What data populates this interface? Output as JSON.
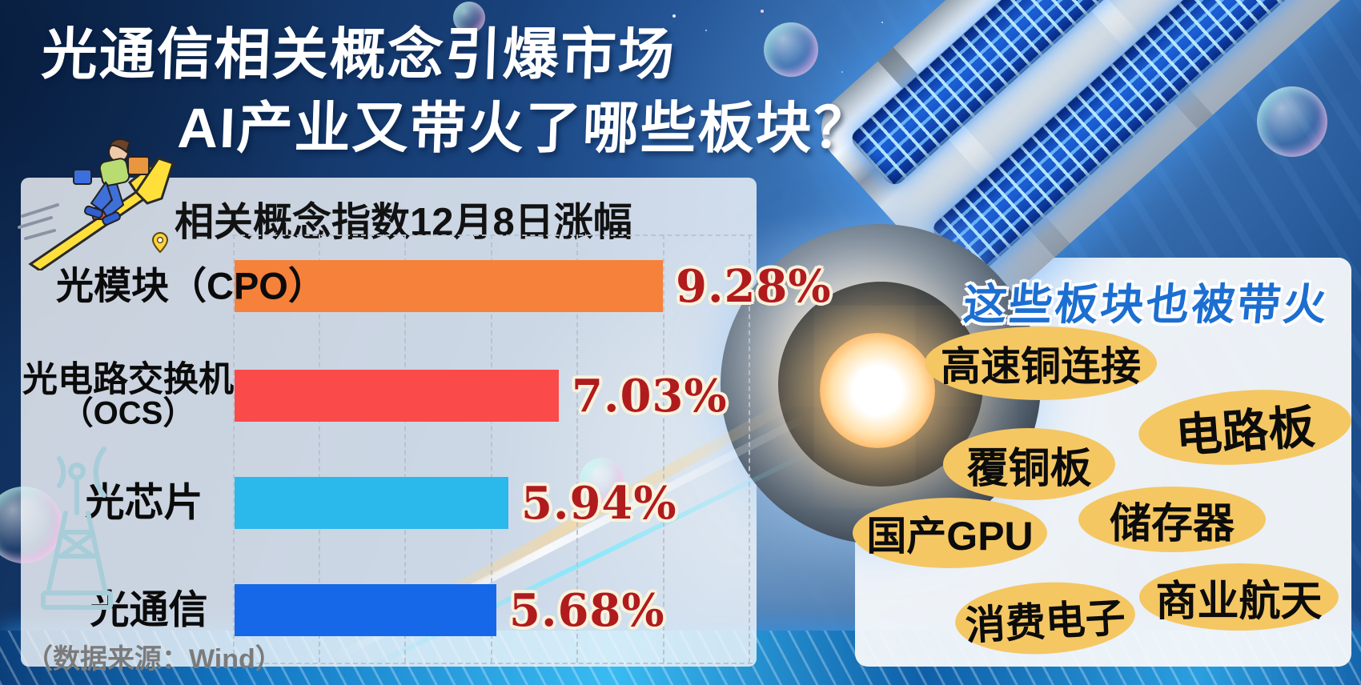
{
  "title": {
    "line1": "光通信相关概念引爆市场",
    "line2": "AI产业又带火了哪些板块？"
  },
  "chart_panel": {
    "header": "相关概念指数12月8日涨幅",
    "source_note": "（数据来源：Wind）"
  },
  "chart_data": {
    "type": "bar",
    "orientation": "horizontal",
    "title": "相关概念指数12月8日涨幅",
    "categories": [
      "光模块（CPO）",
      "光电路交换机（OCS）",
      "光芯片",
      "光通信"
    ],
    "label_lines": [
      [
        "光模块（CPO）"
      ],
      [
        "光电路交换机",
        "（OCS）"
      ],
      [
        "光芯片"
      ],
      [
        "光通信"
      ]
    ],
    "values": [
      9.28,
      7.03,
      5.94,
      5.68
    ],
    "value_labels": [
      "9.28%",
      "7.03%",
      "5.94%",
      "5.68%"
    ],
    "bar_colors": [
      "#F6813A",
      "#FA4B4A",
      "#2BB9EC",
      "#1668E8"
    ],
    "value_text_color": "#B01B1E",
    "xlim": [
      0,
      9.28
    ],
    "grid": "dashed-vertical",
    "legend_position": "none",
    "source": "Wind"
  },
  "side_panel": {
    "header": "这些板块也被带火",
    "header_color": "#1C6FD1",
    "bubble_color": "#F5C763",
    "bubbles": [
      "高速铜连接",
      "电路板",
      "覆铜板",
      "储存器",
      "国产GPU",
      "商业航天",
      "消费电子"
    ]
  },
  "icons": {
    "runner": "runner-up-arrow-icon",
    "pin": "location-pin-icon",
    "tower": "radio-tower-icon"
  }
}
